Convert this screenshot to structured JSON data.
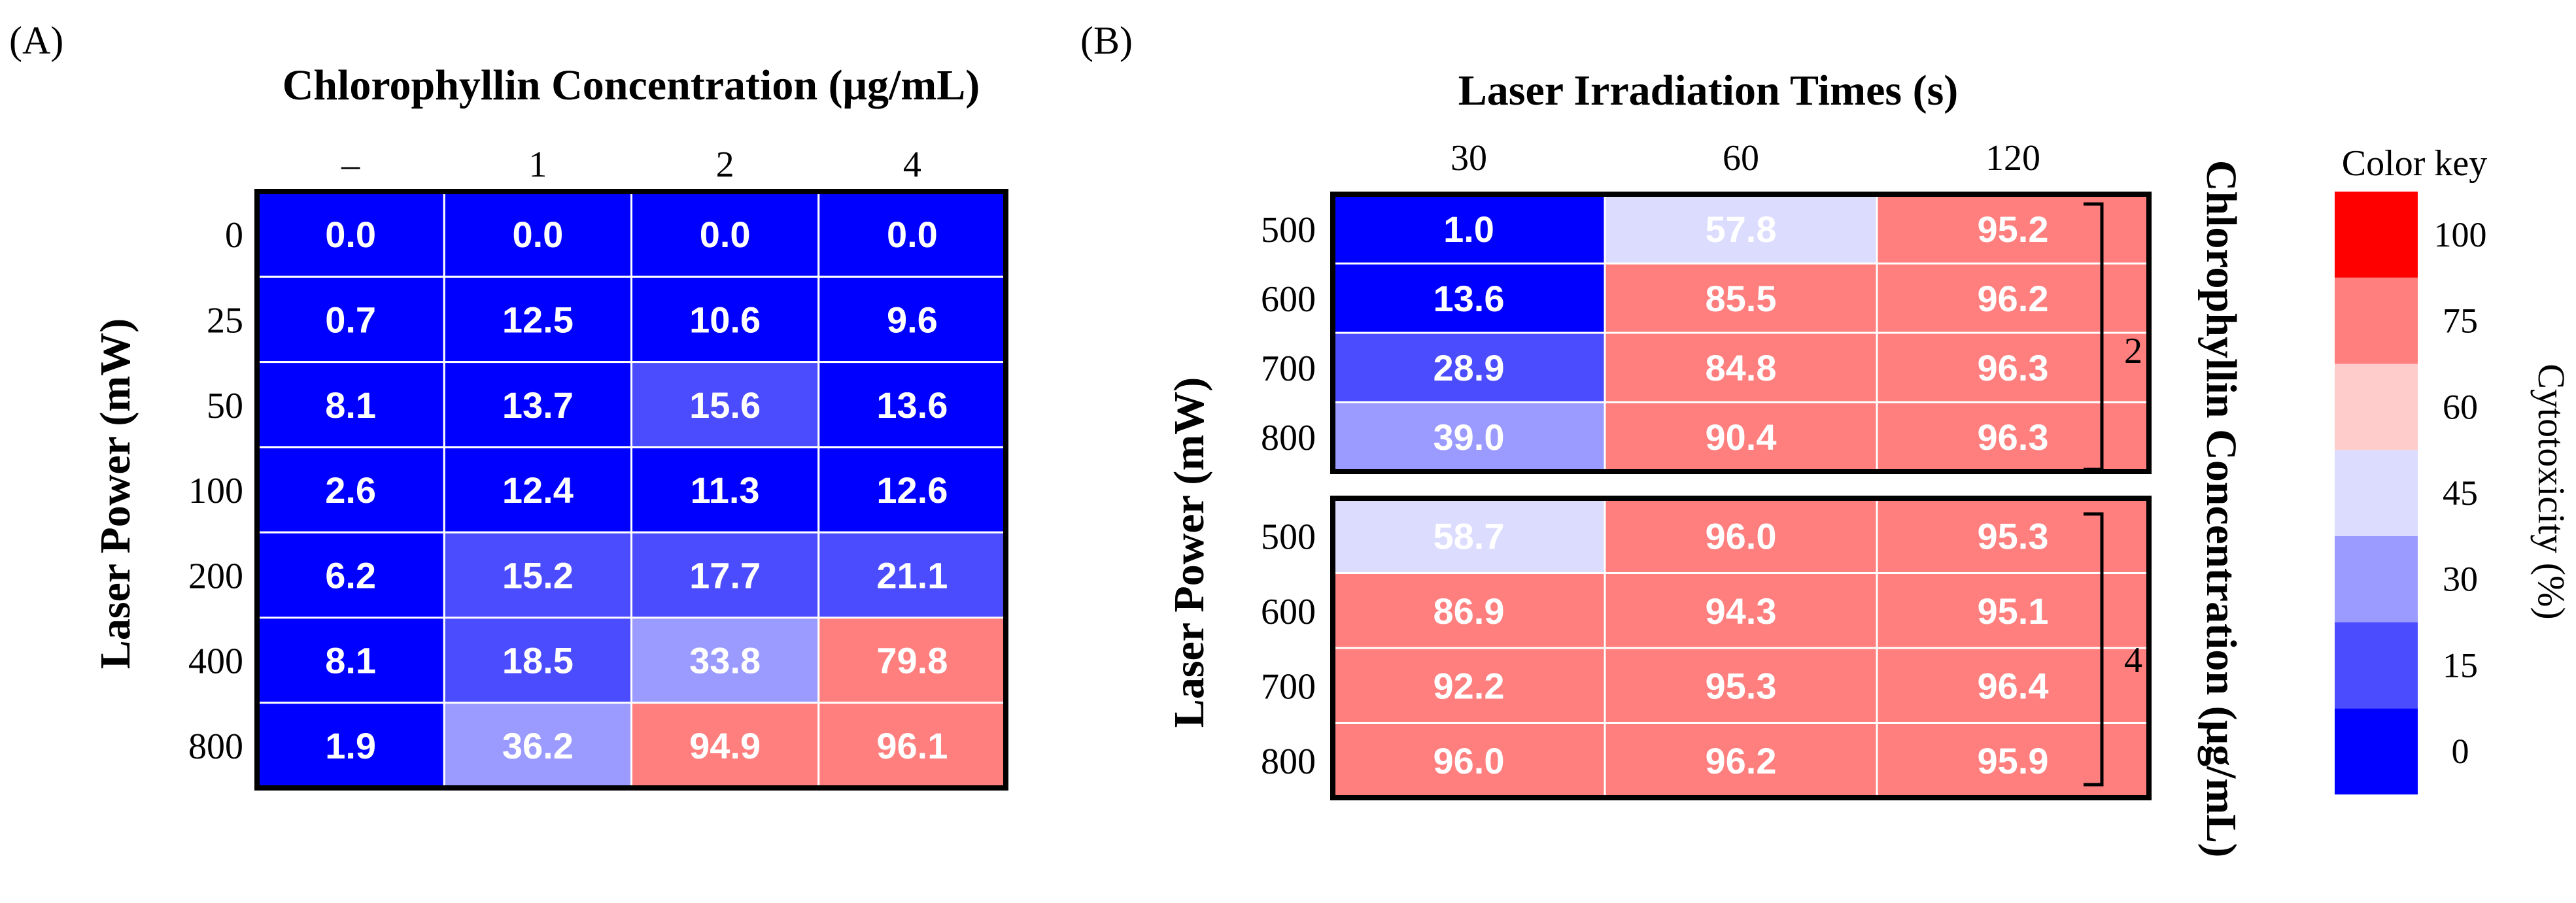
{
  "panels": {
    "a_label": "(A)",
    "b_label": "(B)"
  },
  "chart_data": [
    {
      "type": "heatmap",
      "id": "A",
      "title": "Chlorophyllin Concentration (μg/mL)",
      "ylabel": "Laser Power (mW)",
      "x_categories": [
        "–",
        "1",
        "2",
        "4"
      ],
      "y_categories": [
        "0",
        "25",
        "50",
        "100",
        "200",
        "400",
        "800"
      ],
      "values": [
        [
          0.0,
          0.0,
          0.0,
          0.0
        ],
        [
          0.7,
          12.5,
          10.6,
          9.6
        ],
        [
          8.1,
          13.7,
          15.6,
          13.6
        ],
        [
          2.6,
          12.4,
          11.3,
          12.6
        ],
        [
          6.2,
          15.2,
          17.7,
          21.1
        ],
        [
          8.1,
          18.5,
          33.8,
          79.8
        ],
        [
          1.9,
          36.2,
          94.9,
          96.1
        ]
      ],
      "labels": [
        [
          "0.0",
          "0.0",
          "0.0",
          "0.0"
        ],
        [
          "0.7",
          "12.5",
          "10.6",
          "9.6"
        ],
        [
          "8.1",
          "13.7",
          "15.6",
          "13.6"
        ],
        [
          "2.6",
          "12.4",
          "11.3",
          "12.6"
        ],
        [
          "6.2",
          "15.2",
          "17.7",
          "21.1"
        ],
        [
          "8.1",
          "18.5",
          "33.8",
          "79.8"
        ],
        [
          "1.9",
          "36.2",
          "94.9",
          "96.1"
        ]
      ]
    },
    {
      "type": "heatmap",
      "id": "B",
      "title": "Laser Irradiation Times (s)",
      "ylabel": "Laser Power (mW)",
      "right_label": "Chlorophyllin Concentration (μg/mL)",
      "x_categories": [
        "30",
        "60",
        "120"
      ],
      "groups": [
        {
          "concentration": "2",
          "y_categories": [
            "500",
            "600",
            "700",
            "800"
          ],
          "values": [
            [
              1.0,
              57.8,
              95.2
            ],
            [
              13.6,
              85.5,
              96.2
            ],
            [
              28.9,
              84.8,
              96.3
            ],
            [
              39.0,
              90.4,
              96.3
            ]
          ],
          "labels": [
            [
              "1.0",
              "57.8",
              "95.2"
            ],
            [
              "13.6",
              "85.5",
              "96.2"
            ],
            [
              "28.9",
              "84.8",
              "96.3"
            ],
            [
              "39.0",
              "90.4",
              "96.3"
            ]
          ]
        },
        {
          "concentration": "4",
          "y_categories": [
            "500",
            "600",
            "700",
            "800"
          ],
          "values": [
            [
              58.7,
              96.0,
              95.3
            ],
            [
              86.9,
              94.3,
              95.1
            ],
            [
              92.2,
              95.3,
              96.4
            ],
            [
              96.0,
              96.2,
              95.9
            ]
          ],
          "labels": [
            [
              "58.7",
              "96.0",
              "95.3"
            ],
            [
              "86.9",
              "94.3",
              "95.1"
            ],
            [
              "92.2",
              "95.3",
              "96.4"
            ],
            [
              "96.0",
              "96.2",
              "95.9"
            ]
          ]
        }
      ]
    }
  ],
  "color_key": {
    "title": "Color key",
    "axis_label": "Cytotoxicity (%)",
    "ticks": [
      "0",
      "15",
      "30",
      "45",
      "60",
      "75",
      "100"
    ],
    "bins": [
      0,
      15,
      30,
      45,
      60,
      75,
      100
    ],
    "colors": [
      "#0000ff",
      "#4c4cff",
      "#9b9bff",
      "#dcdcff",
      "#ffcccc",
      "#ff7e7e",
      "#ff0000"
    ]
  }
}
